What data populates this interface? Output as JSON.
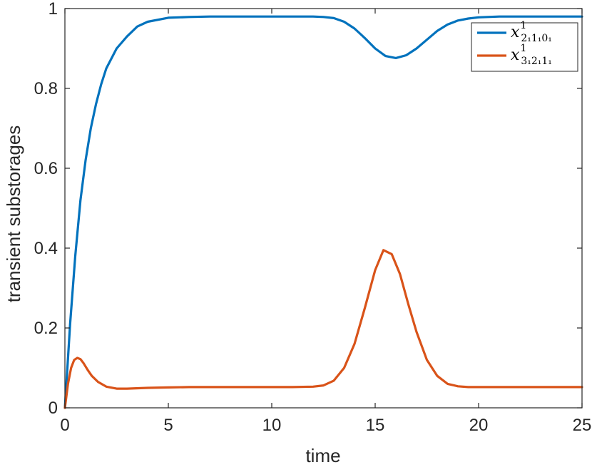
{
  "chart_data": {
    "type": "line",
    "xlabel": "time",
    "ylabel": "transient  substorages",
    "xlim": [
      0,
      25
    ],
    "ylim": [
      0,
      1
    ],
    "xticks": [
      0,
      5,
      10,
      15,
      20,
      25
    ],
    "yticks": [
      0,
      0.2,
      0.4,
      0.6,
      0.8,
      1
    ],
    "xtick_labels": [
      "0",
      "5",
      "10",
      "15",
      "20",
      "25"
    ],
    "ytick_labels": [
      "0",
      "0.2",
      "0.4",
      "0.6",
      "0.8",
      "1"
    ],
    "grid": false,
    "legend_position": "top-right",
    "series": [
      {
        "name": "x^1_{2_1 1_1 0_1}",
        "legend_base": "x",
        "legend_sup": "1",
        "legend_sub": "2₁1₁0₁",
        "color": "#0072BD",
        "x": [
          0,
          0.25,
          0.5,
          0.75,
          1,
          1.25,
          1.5,
          1.75,
          2,
          2.5,
          3,
          3.5,
          4,
          5,
          6,
          7,
          8,
          9,
          10,
          11,
          12,
          12.5,
          13,
          13.5,
          14,
          14.5,
          15,
          15.5,
          16,
          16.5,
          17,
          17.5,
          18,
          18.5,
          19,
          19.5,
          20,
          21,
          22,
          23,
          24,
          25
        ],
        "y": [
          0,
          0.21,
          0.38,
          0.52,
          0.62,
          0.7,
          0.76,
          0.81,
          0.85,
          0.9,
          0.93,
          0.955,
          0.967,
          0.977,
          0.979,
          0.98,
          0.98,
          0.98,
          0.98,
          0.98,
          0.98,
          0.979,
          0.976,
          0.967,
          0.95,
          0.926,
          0.9,
          0.881,
          0.876,
          0.883,
          0.9,
          0.922,
          0.944,
          0.96,
          0.97,
          0.975,
          0.978,
          0.98,
          0.98,
          0.98,
          0.98,
          0.98
        ]
      },
      {
        "name": "x^1_{3_1 2_1 1_1}",
        "legend_base": "x",
        "legend_sup": "1",
        "legend_sub": "3₁2₁1₁",
        "color": "#D95319",
        "x": [
          0,
          0.15,
          0.3,
          0.45,
          0.6,
          0.75,
          0.9,
          1.1,
          1.3,
          1.6,
          2,
          2.5,
          3,
          4,
          5,
          6,
          7,
          8,
          9,
          10,
          11,
          12,
          12.5,
          13,
          13.5,
          14,
          14.5,
          15,
          15.4,
          15.8,
          16.2,
          16.6,
          17,
          17.5,
          18,
          18.5,
          19,
          19.5,
          20,
          21,
          22,
          23,
          24,
          25
        ],
        "y": [
          0,
          0.06,
          0.1,
          0.12,
          0.125,
          0.122,
          0.112,
          0.095,
          0.08,
          0.065,
          0.053,
          0.048,
          0.048,
          0.05,
          0.051,
          0.052,
          0.052,
          0.052,
          0.052,
          0.052,
          0.052,
          0.053,
          0.056,
          0.068,
          0.1,
          0.16,
          0.25,
          0.345,
          0.395,
          0.385,
          0.335,
          0.26,
          0.19,
          0.12,
          0.08,
          0.06,
          0.054,
          0.052,
          0.052,
          0.052,
          0.052,
          0.052,
          0.052,
          0.052
        ]
      }
    ]
  }
}
